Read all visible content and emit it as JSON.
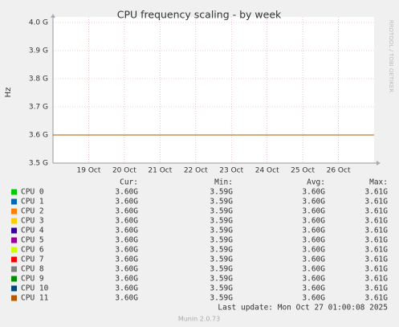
{
  "chart_data": {
    "type": "line",
    "title": "CPU frequency scaling - by week",
    "y_label": "Hz",
    "side_text": "RRDTOOL / TOBI OETIKER",
    "x": [
      "2025-10-18",
      "2025-10-19",
      "2025-10-20",
      "2025-10-21",
      "2025-10-22",
      "2025-10-23",
      "2025-10-24",
      "2025-10-25",
      "2025-10-26",
      "2025-10-27"
    ],
    "xlim": [
      "2025-10-18",
      "2025-10-27"
    ],
    "xticks": [
      {
        "value": "2025-10-19",
        "label": "19 Oct"
      },
      {
        "value": "2025-10-20",
        "label": "20 Oct"
      },
      {
        "value": "2025-10-21",
        "label": "21 Oct"
      },
      {
        "value": "2025-10-22",
        "label": "22 Oct"
      },
      {
        "value": "2025-10-23",
        "label": "23 Oct"
      },
      {
        "value": "2025-10-24",
        "label": "24 Oct"
      },
      {
        "value": "2025-10-25",
        "label": "25 Oct"
      },
      {
        "value": "2025-10-26",
        "label": "26 Oct"
      }
    ],
    "ylim": [
      3500000000,
      4000000000
    ],
    "yticks": [
      {
        "value": 3500000000,
        "label": "3.5 G"
      },
      {
        "value": 3600000000,
        "label": "3.6 G"
      },
      {
        "value": 3700000000,
        "label": "3.7 G"
      },
      {
        "value": 3800000000,
        "label": "3.8 G"
      },
      {
        "value": 3900000000,
        "label": "3.9 G"
      },
      {
        "value": 4000000000,
        "label": "4.0 G"
      }
    ],
    "grid": true,
    "legend_headers": [
      "Cur:",
      "Min:",
      "Avg:",
      "Max:"
    ],
    "series": [
      {
        "name": "CPU 0",
        "color": "#00cc00",
        "values": [
          3600000000,
          3600000000,
          3600000000,
          3600000000,
          3600000000,
          3600000000,
          3600000000,
          3600000000,
          3600000000,
          3600000000
        ],
        "stats": [
          "3.60G",
          "3.59G",
          "3.60G",
          "3.61G"
        ]
      },
      {
        "name": "CPU 1",
        "color": "#0066b3",
        "values": [
          3600000000,
          3600000000,
          3600000000,
          3600000000,
          3600000000,
          3600000000,
          3600000000,
          3600000000,
          3600000000,
          3600000000
        ],
        "stats": [
          "3.60G",
          "3.59G",
          "3.60G",
          "3.61G"
        ]
      },
      {
        "name": "CPU 2",
        "color": "#ff8000",
        "values": [
          3600000000,
          3600000000,
          3600000000,
          3600000000,
          3600000000,
          3600000000,
          3600000000,
          3600000000,
          3600000000,
          3600000000
        ],
        "stats": [
          "3.60G",
          "3.59G",
          "3.60G",
          "3.61G"
        ]
      },
      {
        "name": "CPU 3",
        "color": "#ffcc00",
        "values": [
          3600000000,
          3600000000,
          3600000000,
          3600000000,
          3600000000,
          3600000000,
          3600000000,
          3600000000,
          3600000000,
          3600000000
        ],
        "stats": [
          "3.60G",
          "3.59G",
          "3.60G",
          "3.61G"
        ]
      },
      {
        "name": "CPU 4",
        "color": "#330099",
        "values": [
          3600000000,
          3600000000,
          3600000000,
          3600000000,
          3600000000,
          3600000000,
          3600000000,
          3600000000,
          3600000000,
          3600000000
        ],
        "stats": [
          "3.60G",
          "3.59G",
          "3.60G",
          "3.61G"
        ]
      },
      {
        "name": "CPU 5",
        "color": "#990099",
        "values": [
          3600000000,
          3600000000,
          3600000000,
          3600000000,
          3600000000,
          3600000000,
          3600000000,
          3600000000,
          3600000000,
          3600000000
        ],
        "stats": [
          "3.60G",
          "3.59G",
          "3.60G",
          "3.61G"
        ]
      },
      {
        "name": "CPU 6",
        "color": "#ccff00",
        "values": [
          3600000000,
          3600000000,
          3600000000,
          3600000000,
          3600000000,
          3600000000,
          3600000000,
          3600000000,
          3600000000,
          3600000000
        ],
        "stats": [
          "3.60G",
          "3.59G",
          "3.60G",
          "3.61G"
        ]
      },
      {
        "name": "CPU 7",
        "color": "#ff0000",
        "values": [
          3600000000,
          3600000000,
          3600000000,
          3600000000,
          3600000000,
          3600000000,
          3600000000,
          3600000000,
          3600000000,
          3600000000
        ],
        "stats": [
          "3.60G",
          "3.59G",
          "3.60G",
          "3.61G"
        ]
      },
      {
        "name": "CPU 8",
        "color": "#808080",
        "values": [
          3600000000,
          3600000000,
          3600000000,
          3600000000,
          3600000000,
          3600000000,
          3600000000,
          3600000000,
          3600000000,
          3600000000
        ],
        "stats": [
          "3.60G",
          "3.59G",
          "3.60G",
          "3.61G"
        ]
      },
      {
        "name": "CPU 9",
        "color": "#008f00",
        "values": [
          3600000000,
          3600000000,
          3600000000,
          3600000000,
          3600000000,
          3600000000,
          3600000000,
          3600000000,
          3600000000,
          3600000000
        ],
        "stats": [
          "3.60G",
          "3.59G",
          "3.60G",
          "3.61G"
        ]
      },
      {
        "name": "CPU 10",
        "color": "#00487d",
        "values": [
          3600000000,
          3600000000,
          3600000000,
          3600000000,
          3600000000,
          3600000000,
          3600000000,
          3600000000,
          3600000000,
          3600000000
        ],
        "stats": [
          "3.60G",
          "3.59G",
          "3.60G",
          "3.61G"
        ]
      },
      {
        "name": "CPU 11",
        "color": "#b35a00",
        "values": [
          3600000000,
          3600000000,
          3600000000,
          3600000000,
          3600000000,
          3600000000,
          3600000000,
          3600000000,
          3600000000,
          3600000000
        ],
        "stats": [
          "3.60G",
          "3.59G",
          "3.60G",
          "3.61G"
        ]
      }
    ],
    "last_update": "Last update: Mon Oct 27 01:00:08 2025",
    "footer": "Munin 2.0.73"
  }
}
